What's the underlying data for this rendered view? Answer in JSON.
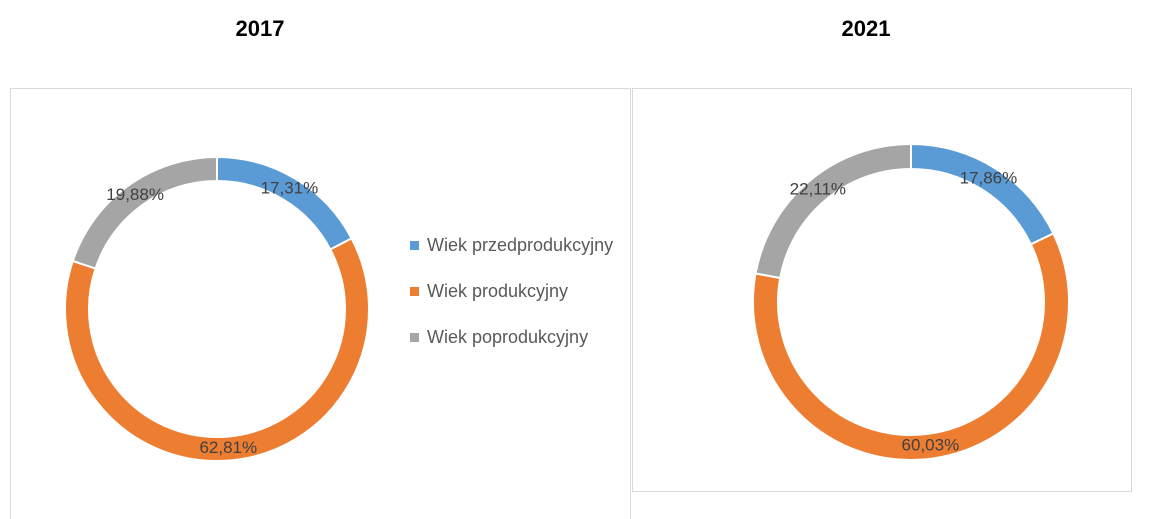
{
  "chart_data": [
    {
      "type": "donut",
      "title": "2017",
      "categories": [
        "Wiek przedprodukcyjny",
        "Wiek produkcyjny",
        "Wiek poprodukcyjny"
      ],
      "values": [
        17.31,
        62.81,
        19.88
      ],
      "value_labels": [
        "17,31%",
        "62,81%",
        "19,88%"
      ],
      "colors": [
        "#5b9bd5",
        "#ed7d31",
        "#a5a5a5"
      ],
      "legend": "right"
    },
    {
      "type": "donut",
      "title": "2021",
      "values": [
        17.86,
        60.03,
        22.11
      ],
      "value_labels": [
        "17,86%",
        "60,03%",
        "22,11%"
      ],
      "colors": [
        "#5b9bd5",
        "#ed7d31",
        "#a5a5a5"
      ]
    }
  ]
}
